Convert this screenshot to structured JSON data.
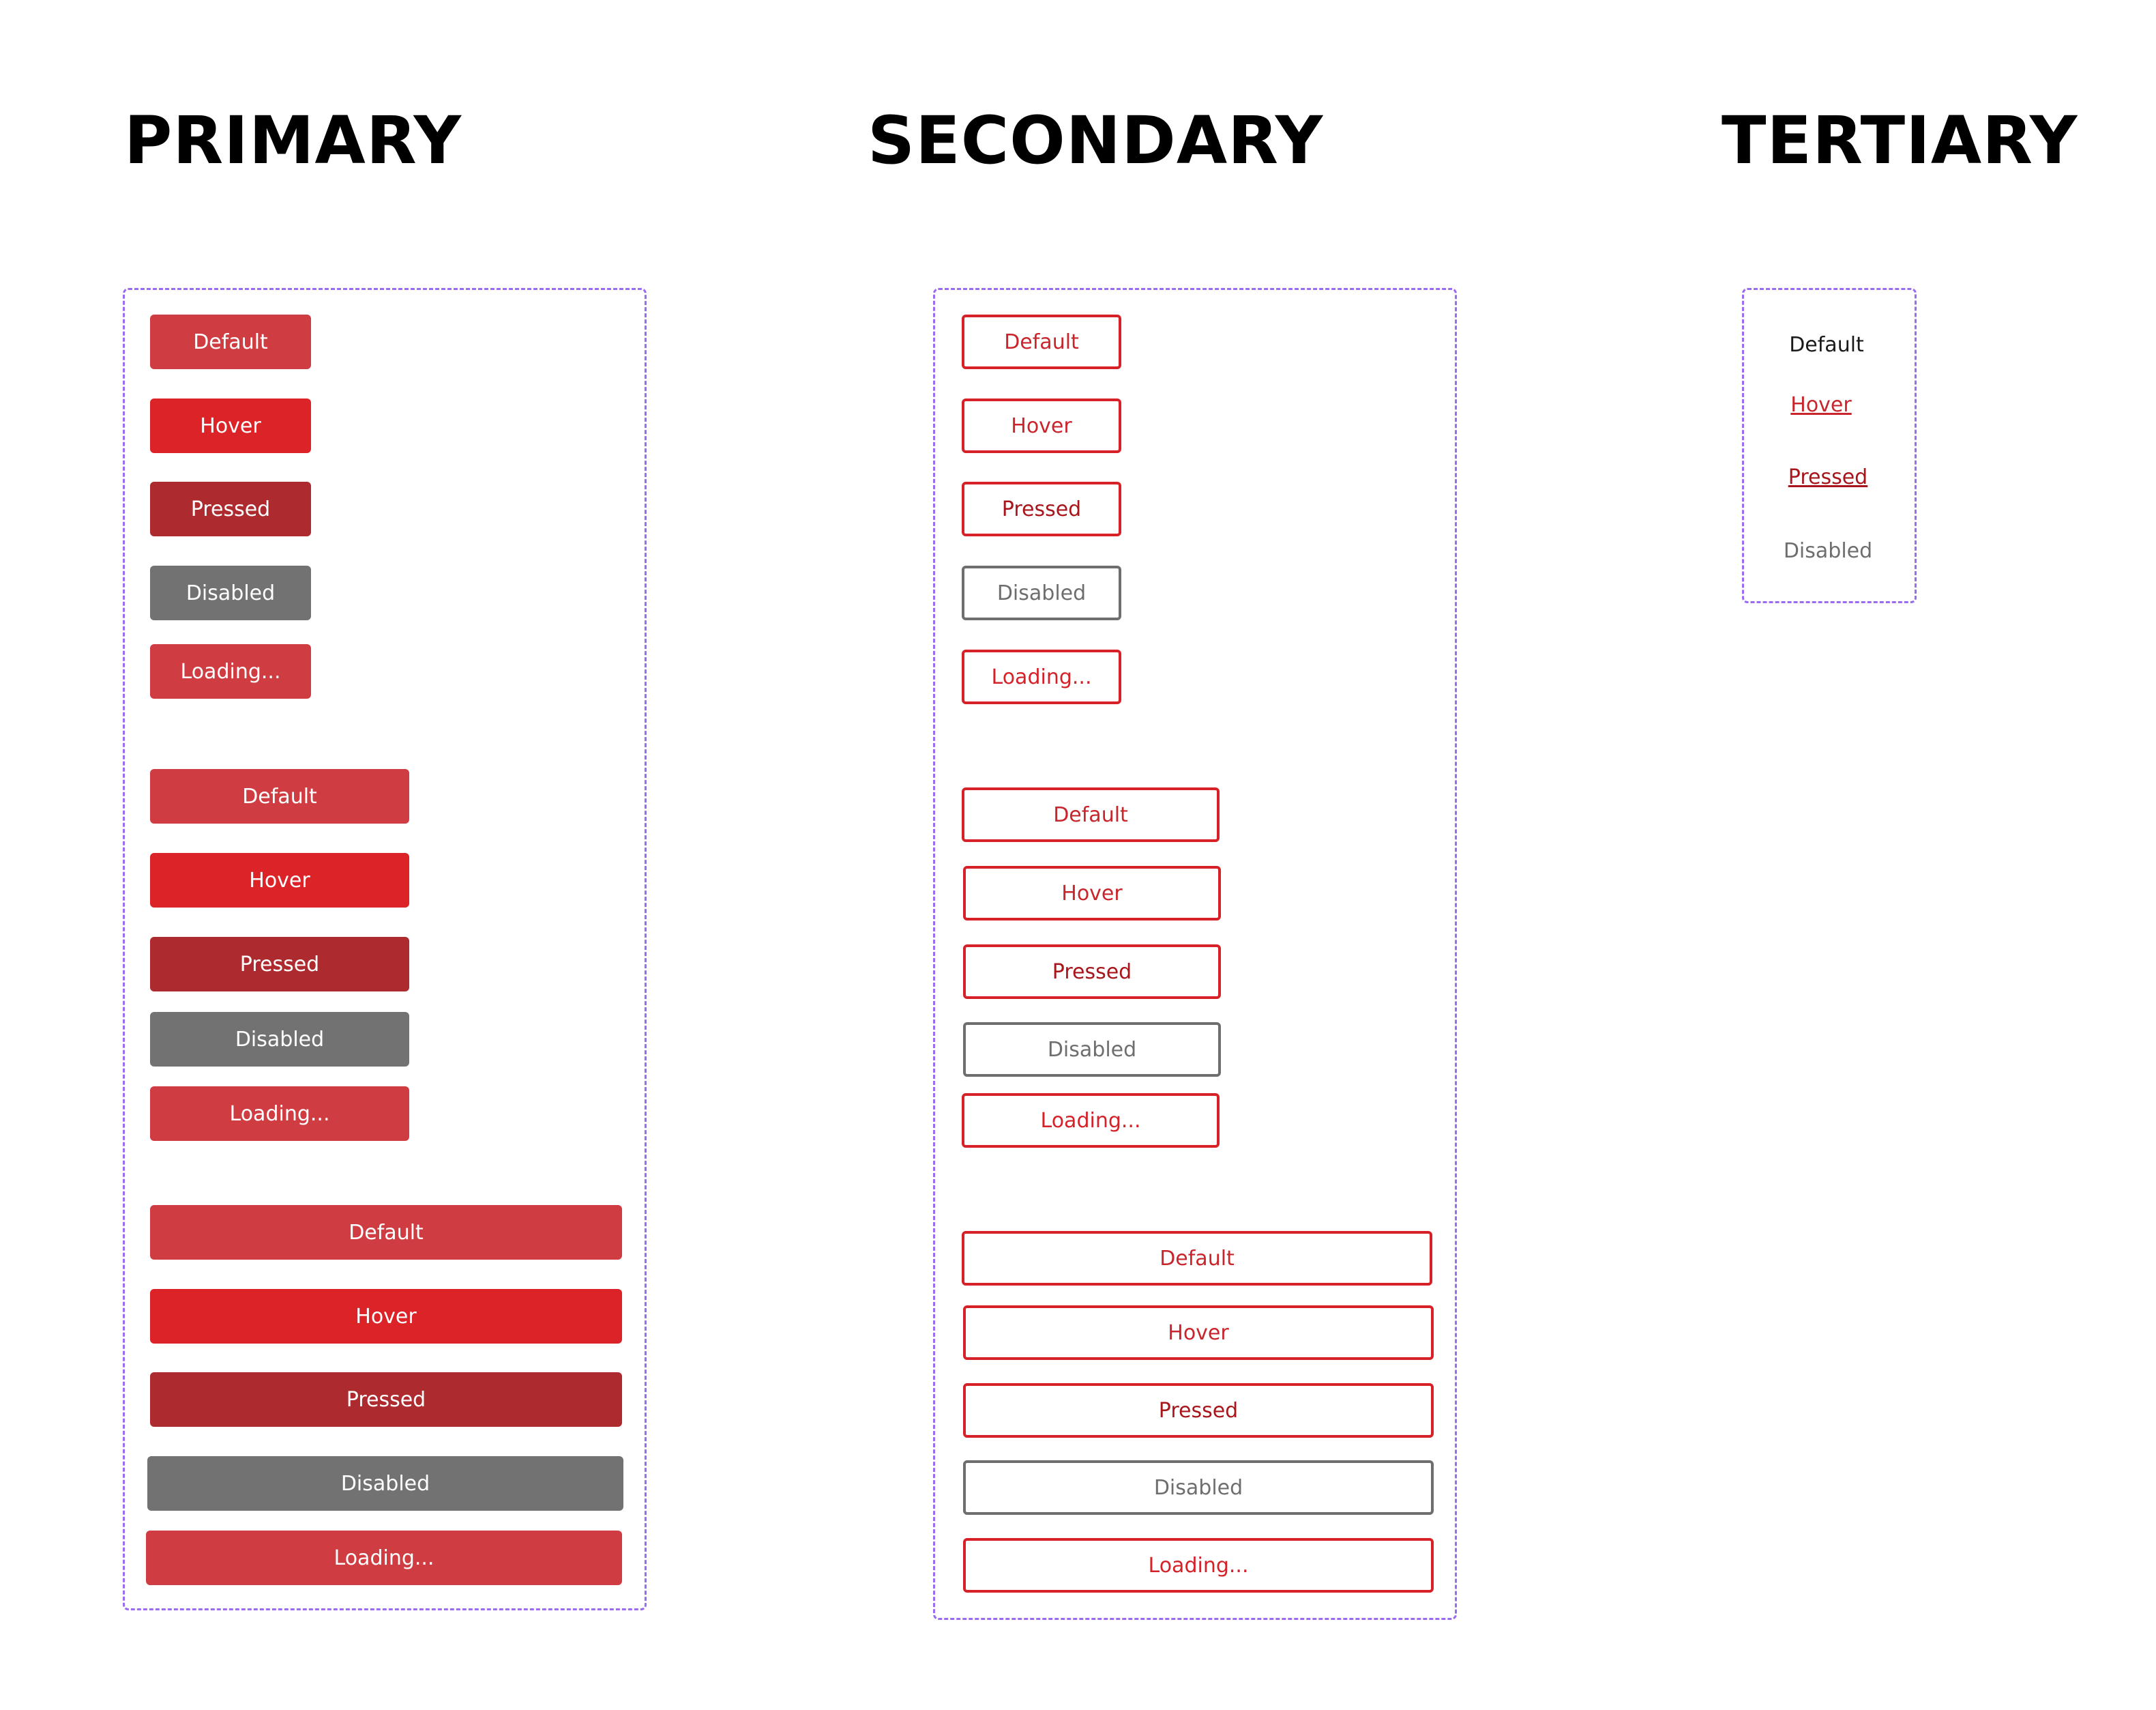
{
  "headings": {
    "primary": "PRIMARY",
    "secondary": "SECONDARY",
    "tertiary": "TERTIARY"
  },
  "colors": {
    "primary_default": "#cf3d42",
    "primary_hover": "#dc2327",
    "primary_pressed": "#ad2a2f",
    "primary_disabled": "#727272",
    "primary_loading": "#cf3d42",
    "secondary_default_text": "#c8262c",
    "secondary_hover_text": "#c8262c",
    "secondary_pressed_text": "#a8161c",
    "secondary_disabled_text": "#6e6e6e",
    "secondary_loading_text": "#d62128",
    "tertiary_default_text": "#1a1a1a",
    "tertiary_hover_text": "#c8262c",
    "tertiary_pressed_text": "#a8161c",
    "tertiary_disabled_text": "#6e6e6e",
    "frame_border": "#9b6cf0"
  },
  "primary": {
    "small": {
      "default": "Default",
      "hover": "Hover",
      "pressed": "Pressed",
      "disabled": "Disabled",
      "loading": "Loading..."
    },
    "medium": {
      "default": "Default",
      "hover": "Hover",
      "pressed": "Pressed",
      "disabled": "Disabled",
      "loading": "Loading..."
    },
    "large": {
      "default": "Default",
      "hover": "Hover",
      "pressed": "Pressed",
      "disabled": "Disabled",
      "loading": "Loading..."
    }
  },
  "secondary": {
    "small": {
      "default": "Default",
      "hover": "Hover",
      "pressed": "Pressed",
      "disabled": "Disabled",
      "loading": "Loading..."
    },
    "medium": {
      "default": "Default",
      "hover": "Hover",
      "pressed": "Pressed",
      "disabled": "Disabled",
      "loading": "Loading..."
    },
    "large": {
      "default": "Default",
      "hover": "Hover",
      "pressed": "Pressed",
      "disabled": "Disabled",
      "loading": "Loading..."
    }
  },
  "tertiary": {
    "default": "Default",
    "hover": "Hover",
    "pressed": "Pressed",
    "disabled": "Disabled"
  }
}
